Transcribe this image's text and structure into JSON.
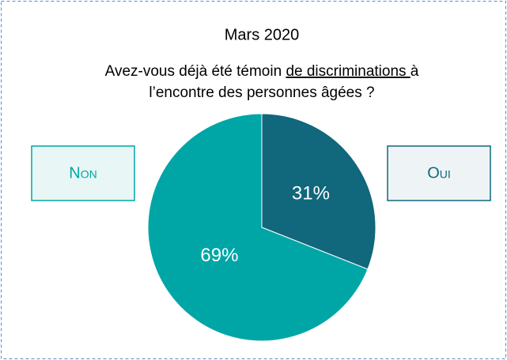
{
  "chart_data": {
    "type": "pie",
    "title": "Mars 2020",
    "subtitle": [
      [
        "Avez-vous déjà été témoin ",
        "de discriminations ",
        "à"
      ],
      [
        "l’encontre des personnes âgées ?"
      ]
    ],
    "categories": [
      "Oui",
      "Non"
    ],
    "values": [
      31,
      69
    ],
    "value_labels": [
      "31%",
      "69%"
    ],
    "colors": [
      "#11677c",
      "#00a6a6"
    ]
  }
}
